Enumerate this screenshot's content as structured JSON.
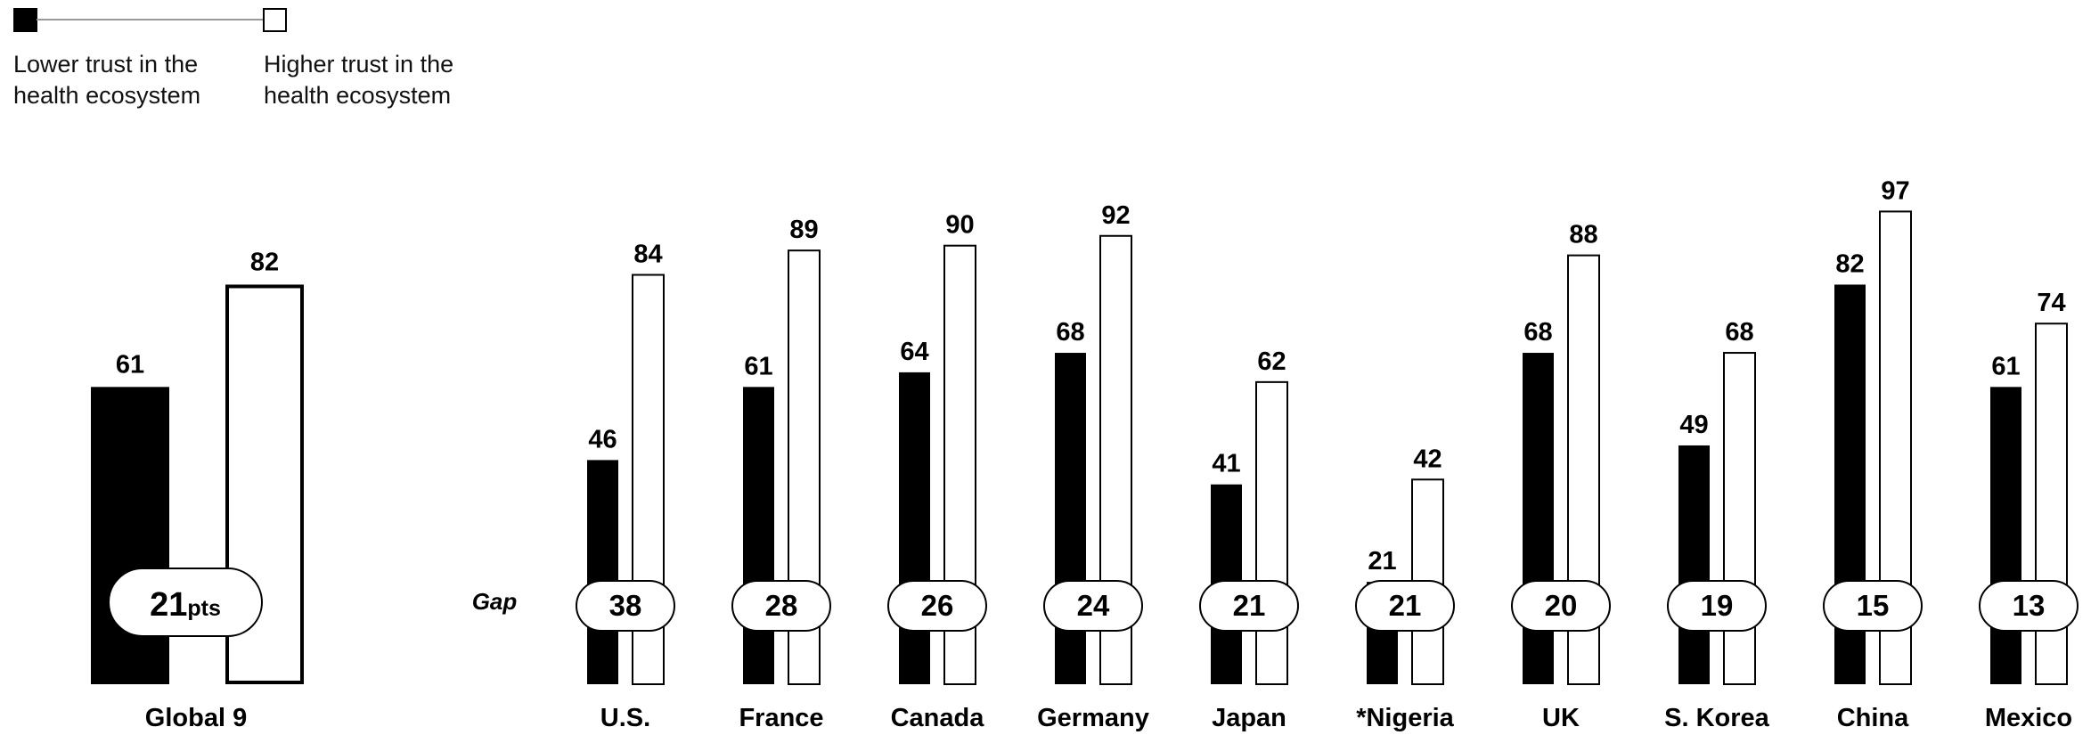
{
  "legend": {
    "lower_line1": "Lower trust in the",
    "lower_line2": "health ecosystem",
    "higher_line1": "Higher trust in the",
    "higher_line2": "health ecosystem"
  },
  "colors": {
    "lower": "#000000",
    "higher": "#ffffff",
    "outline": "#000000"
  },
  "chart_data": [
    {
      "type": "bar",
      "categories": [
        "Global 9"
      ],
      "series": [
        {
          "name": "Lower trust in the health ecosystem",
          "values": [
            61
          ]
        },
        {
          "name": "Higher trust in the health ecosystem",
          "values": [
            82
          ]
        }
      ],
      "gap_value": "21",
      "gap_unit": "pts",
      "ylim": [
        0,
        100
      ]
    },
    {
      "type": "bar",
      "categories": [
        "U.S.",
        "France",
        "Canada",
        "Germany",
        "Japan",
        "*Nigeria",
        "UK",
        "S. Korea",
        "China",
        "Mexico"
      ],
      "series": [
        {
          "name": "Lower trust in the health ecosystem",
          "values": [
            46,
            61,
            64,
            68,
            41,
            21,
            68,
            49,
            82,
            61
          ]
        },
        {
          "name": "Higher trust in the health ecosystem",
          "values": [
            84,
            89,
            90,
            92,
            62,
            42,
            88,
            68,
            97,
            74
          ]
        }
      ],
      "gap_label": "Gap",
      "gaps": [
        "38",
        "28",
        "26",
        "24",
        "21",
        "21",
        "20",
        "19",
        "15",
        "13"
      ],
      "ylim": [
        0,
        100
      ]
    }
  ]
}
